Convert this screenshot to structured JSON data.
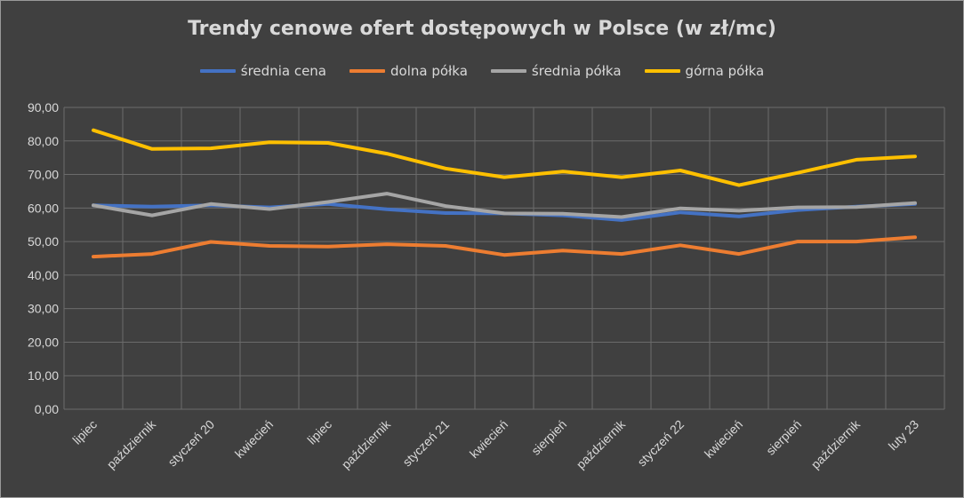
{
  "chart_data": {
    "type": "line",
    "title": "Trendy cenowe ofert dostępowych w Polsce (w zł/mc)",
    "xlabel": "",
    "ylabel": "",
    "ylim": [
      0,
      90
    ],
    "yticks": [
      "0,00",
      "10,00",
      "20,00",
      "30,00",
      "40,00",
      "50,00",
      "60,00",
      "70,00",
      "80,00",
      "90,00"
    ],
    "grid": true,
    "legend_position": "top",
    "x_tick_labels": [
      "lipiec",
      "październik",
      "styczeń 20",
      "kwiecień",
      "lipiec",
      "październik",
      "styczeń 21",
      "kwiecień",
      "sierpień",
      "październik",
      "styczeń 22",
      "kwiecień",
      "sierpień",
      "październik",
      "luty 23"
    ],
    "series": [
      {
        "name": "średnia cena",
        "color": "#4472c4",
        "values": [
          60.8,
          60.4,
          60.8,
          60.2,
          61.2,
          59.6,
          58.5,
          58.4,
          57.8,
          56.4,
          58.7,
          57.5,
          59.4,
          60.4,
          61.2
        ]
      },
      {
        "name": "dolna półka",
        "color": "#ed7d31",
        "values": [
          45.5,
          46.3,
          49.9,
          48.7,
          48.5,
          49.2,
          48.7,
          46.0,
          47.3,
          46.3,
          48.9,
          46.3,
          50.0,
          50.0,
          51.3
        ]
      },
      {
        "name": "średnia półka",
        "color": "#a5a5a5",
        "values": [
          60.8,
          57.8,
          61.2,
          59.7,
          61.8,
          64.3,
          60.6,
          58.4,
          58.3,
          57.3,
          59.9,
          59.2,
          60.2,
          60.3,
          61.5
        ]
      },
      {
        "name": "górna półka",
        "color": "#ffc000",
        "values": [
          83.2,
          77.6,
          77.8,
          79.6,
          79.4,
          76.2,
          71.8,
          69.2,
          70.9,
          69.2,
          71.2,
          66.8,
          70.5,
          74.4,
          75.4
        ]
      }
    ]
  }
}
